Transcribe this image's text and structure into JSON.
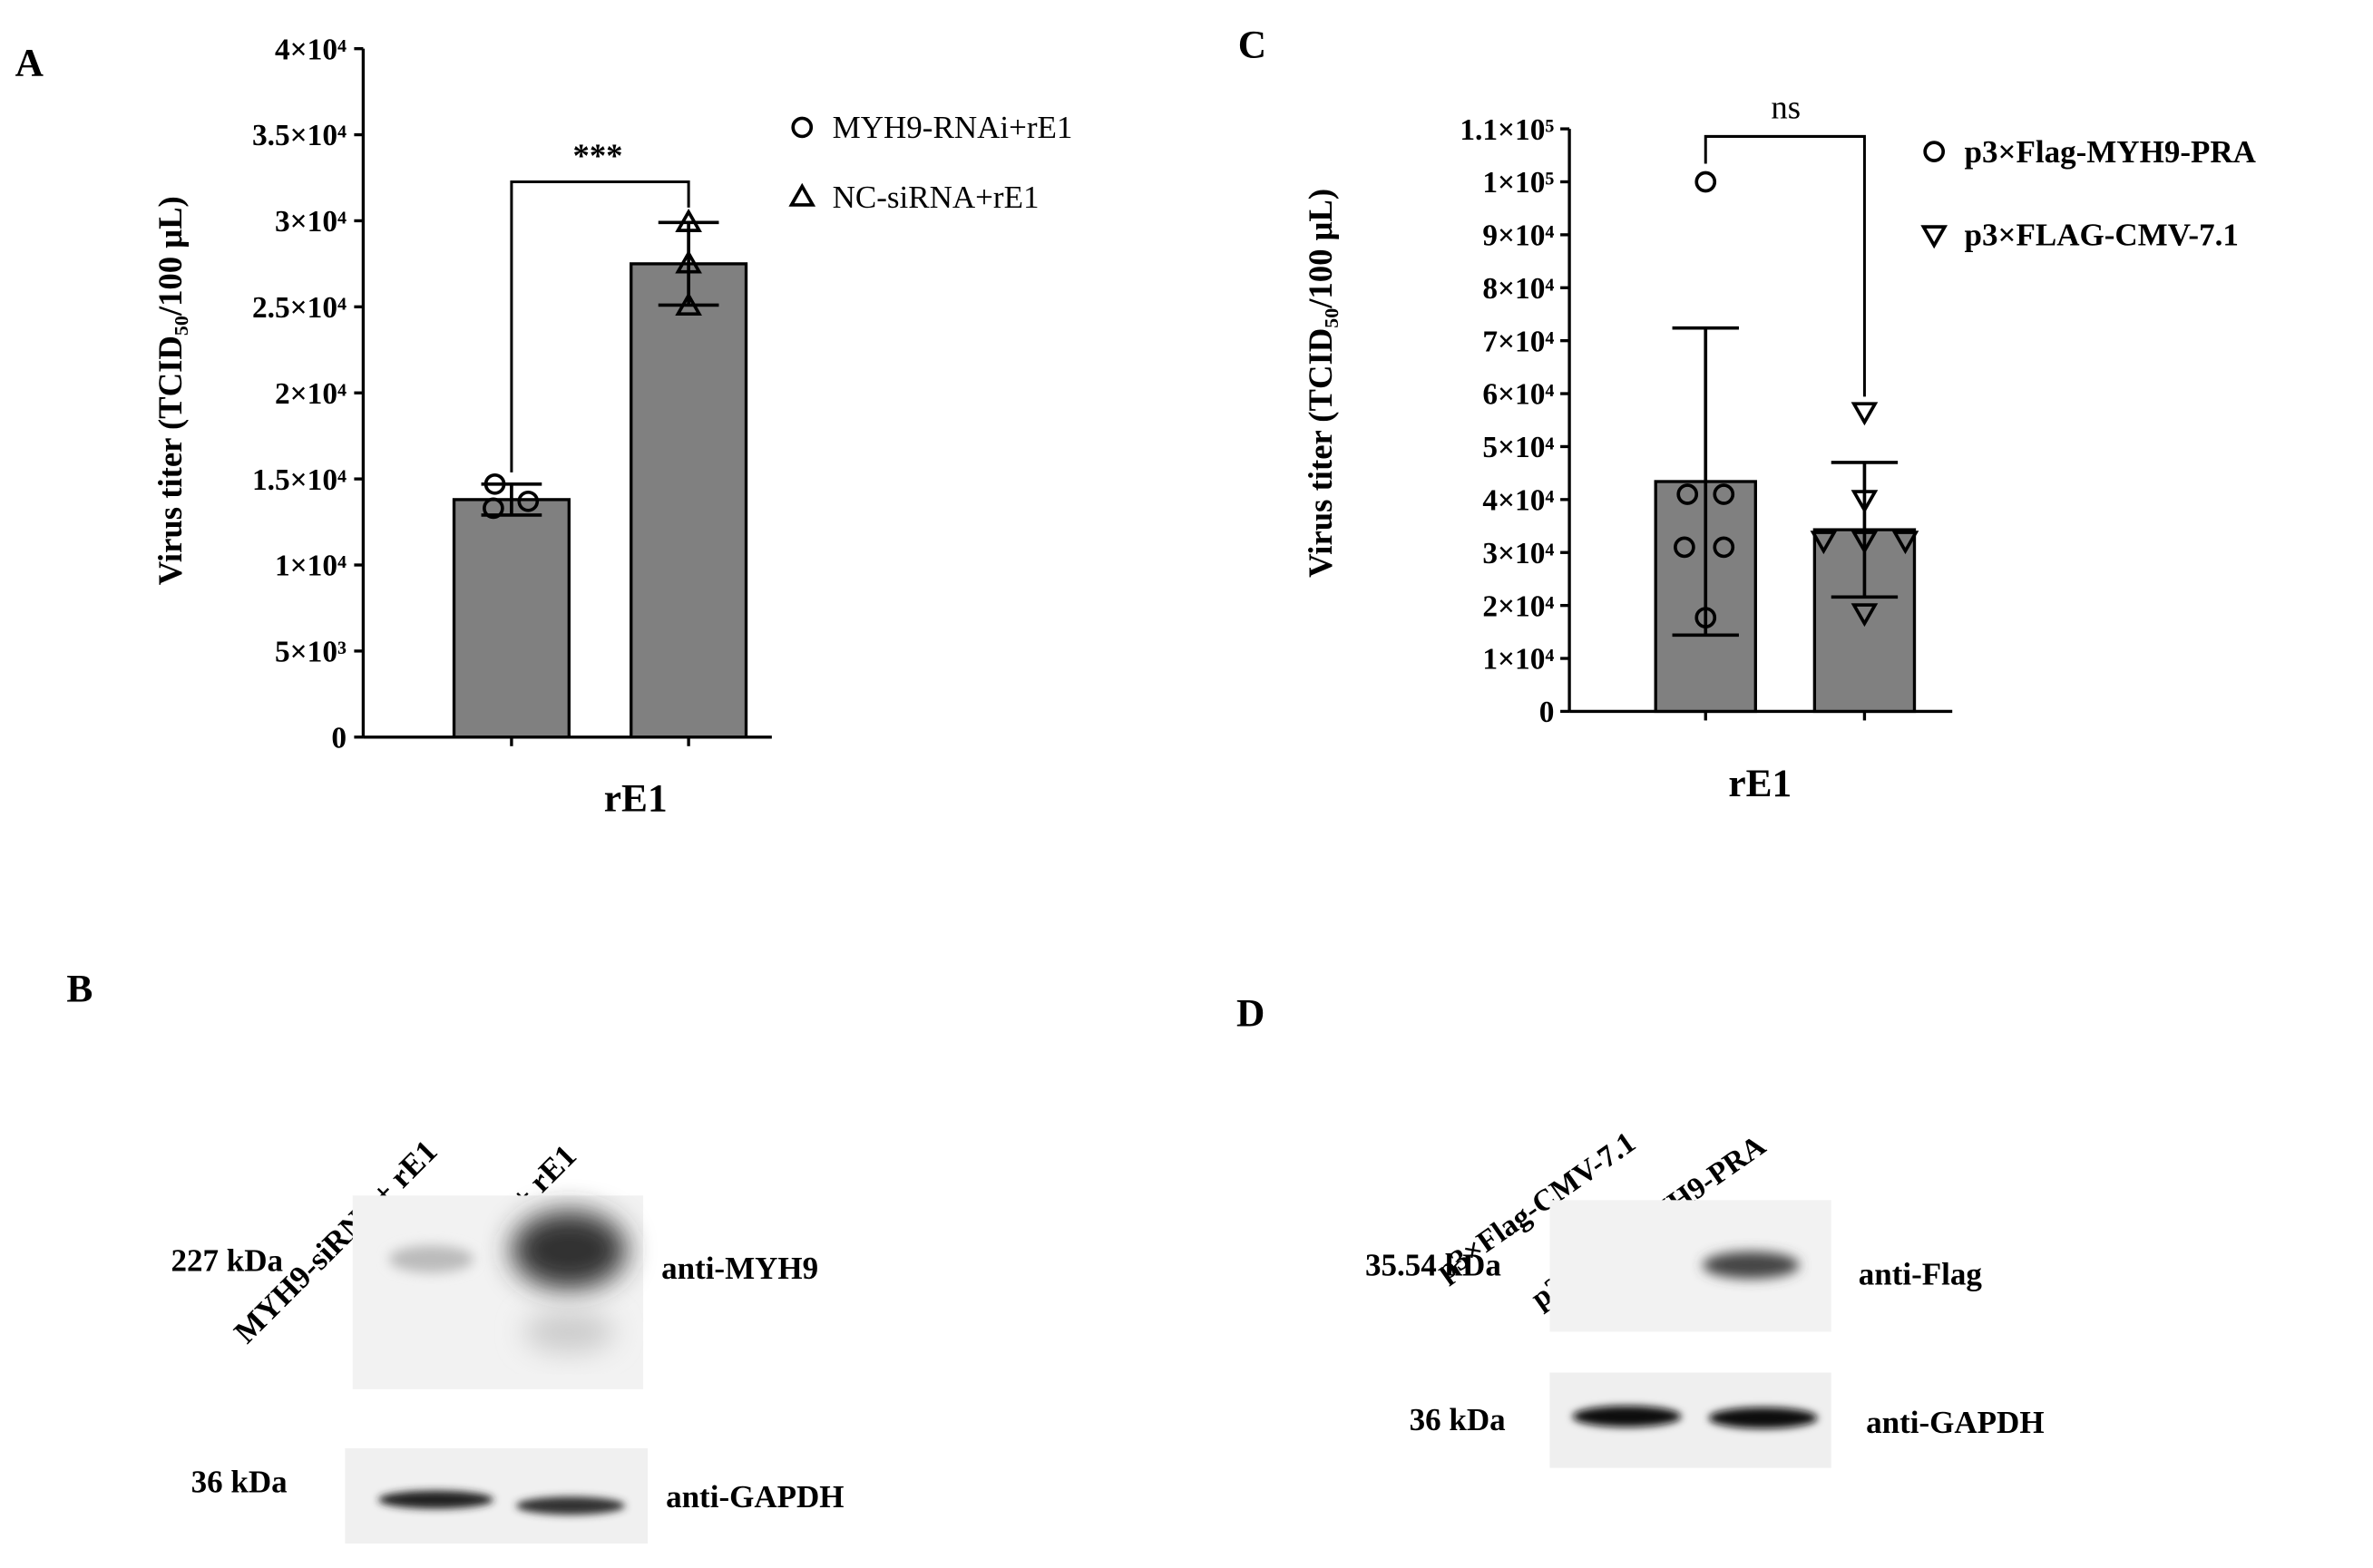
{
  "panel_labels": [
    "A",
    "B",
    "C",
    "D"
  ],
  "chart_data": [
    {
      "type": "bar",
      "ylabel": "Virus titer (TCID₅₀/100 μL)",
      "categories": [
        "rE1"
      ],
      "significance": "***",
      "ylim": [
        0,
        40000
      ],
      "yticks": [
        0,
        {
          "value": 5000,
          "label": "5×10³"
        },
        {
          "value": 10000,
          "label": "1×10⁴"
        },
        {
          "value": 15000,
          "label": "1.5×10⁴"
        },
        {
          "value": 20000,
          "label": "2×10⁴"
        },
        {
          "value": 25000,
          "label": "2.5×10⁴"
        },
        {
          "value": 30000,
          "label": "3×10⁴"
        },
        {
          "value": 35000,
          "label": "3.5×10⁴"
        },
        {
          "value": 40000,
          "label": "4×10⁴"
        }
      ],
      "series": [
        {
          "name": "MYH9-RNAi+rE1",
          "color": "#808080",
          "marker": "circle",
          "values": [
            13800
          ],
          "error": [
            900
          ],
          "points": [
            14700,
            13300,
            13700
          ]
        },
        {
          "name": "NC-siRNA+rE1",
          "color": "#808080",
          "marker": "triangle",
          "values": [
            27500
          ],
          "error": [
            2400
          ],
          "points": [
            29900,
            27500,
            25050
          ]
        }
      ]
    },
    {
      "type": "bar",
      "ylabel": "Virus titer (TCID₅₀/100 μL)",
      "categories": [
        "rE1"
      ],
      "significance": "ns",
      "ylim": [
        0,
        110000
      ],
      "yticks": [
        0,
        {
          "value": 10000,
          "label": "1×10⁴"
        },
        {
          "value": 20000,
          "label": "2×10⁴"
        },
        {
          "value": 30000,
          "label": "3×10⁴"
        },
        {
          "value": 40000,
          "label": "4×10⁴"
        },
        {
          "value": 50000,
          "label": "5×10⁴"
        },
        {
          "value": 60000,
          "label": "6×10⁴"
        },
        {
          "value": 70000,
          "label": "7×10⁴"
        },
        {
          "value": 80000,
          "label": "8×10⁴"
        },
        {
          "value": 90000,
          "label": "9×10⁴"
        },
        {
          "value": 100000,
          "label": "1×10⁵"
        },
        {
          "value": 110000,
          "label": "1.1×10⁵"
        }
      ],
      "series": [
        {
          "name": "p3×Flag-MYH9-PRA",
          "color": "#808080",
          "marker": "circle",
          "values": [
            43400
          ],
          "error": [
            29000
          ],
          "points": [
            100000,
            41000,
            41000,
            31000,
            31000,
            17700
          ]
        },
        {
          "name": "p3×FLAG-CMV-7.1",
          "color": "#808080",
          "marker": "triangle-down",
          "values": [
            34300
          ],
          "error": [
            12700
          ],
          "points": [
            56600,
            40000,
            32300,
            32300,
            32300,
            18600
          ]
        }
      ]
    }
  ],
  "blots": [
    {
      "lanes": [
        "MYH9-siRNA+ rE1",
        "NC-siRNA + rE1"
      ],
      "rows": [
        {
          "size": "227 kDa",
          "antibody": "anti-MYH9"
        },
        {
          "size": "36 kDa",
          "antibody": "anti-GAPDH"
        }
      ]
    },
    {
      "lanes": [
        "p3×Flag-CMV-7.1",
        "p3×Flag-MYH9-PRA"
      ],
      "rows": [
        {
          "size": "35.54 kDa",
          "antibody": "anti-Flag"
        },
        {
          "size": "36 kDa",
          "antibody": "anti-GAPDH"
        }
      ]
    }
  ]
}
